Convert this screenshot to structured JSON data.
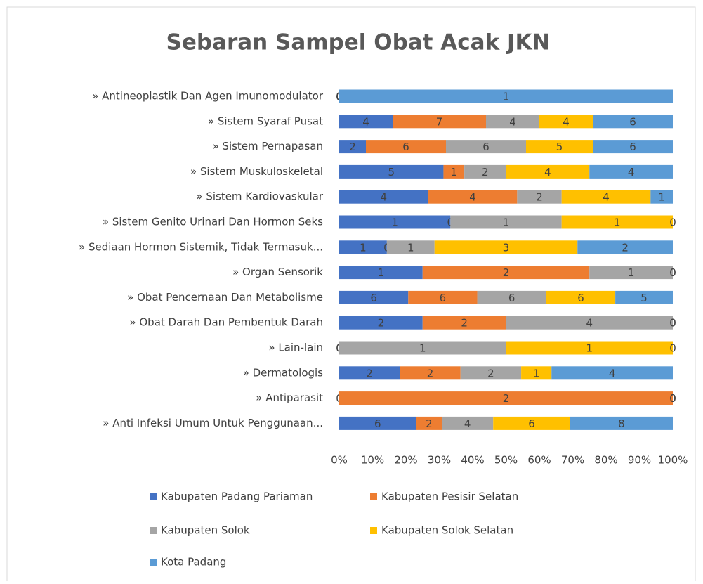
{
  "chart_data": {
    "type": "bar",
    "orientation": "horizontal",
    "stacking": "percent",
    "title": "Sebaran Sampel Obat Acak JKN",
    "categories": [
      "» Antineoplastik Dan Agen Imunomodulator",
      "» Sistem Syaraf Pusat",
      "» Sistem Pernapasan",
      "» Sistem Muskuloskeletal",
      "» Sistem Kardiovaskular",
      "» Sistem Genito Urinari Dan Hormon Seks",
      "» Sediaan Hormon Sistemik, Tidak Termasuk...",
      "» Organ Sensorik",
      "» Obat Pencernaan Dan Metabolisme",
      "» Obat Darah Dan Pembentuk Darah",
      "» Lain-lain",
      "» Dermatologis",
      "» Antiparasit",
      "» Anti Infeksi Umum Untuk Penggunaan..."
    ],
    "series": [
      {
        "name": "Kabupaten Padang Pariaman",
        "color": "#4472c4",
        "values": [
          0,
          4,
          2,
          5,
          4,
          1,
          1,
          1,
          6,
          2,
          0,
          2,
          0,
          6
        ]
      },
      {
        "name": "Kabupaten Pesisir Selatan",
        "color": "#ed7d31",
        "values": [
          0,
          7,
          6,
          1,
          4,
          0,
          0,
          2,
          6,
          2,
          0,
          2,
          2,
          2
        ]
      },
      {
        "name": "Kabupaten Solok",
        "color": "#a5a5a5",
        "values": [
          0,
          4,
          6,
          2,
          2,
          1,
          1,
          1,
          6,
          4,
          1,
          2,
          0,
          4
        ]
      },
      {
        "name": "Kabupaten Solok Selatan",
        "color": "#ffc000",
        "values": [
          0,
          4,
          5,
          4,
          4,
          1,
          3,
          0,
          6,
          0,
          1,
          1,
          0,
          6
        ]
      },
      {
        "name": "Kota Padang",
        "color": "#5b9bd5",
        "values": [
          1,
          6,
          6,
          4,
          1,
          0,
          2,
          0,
          5,
          0,
          0,
          4,
          0,
          8
        ]
      }
    ],
    "xlim": [
      0,
      100
    ],
    "xticks": [
      {
        "value": 0,
        "label": "0%"
      },
      {
        "value": 10,
        "label": "10%"
      },
      {
        "value": 20,
        "label": "20%"
      },
      {
        "value": 30,
        "label": "30%"
      },
      {
        "value": 40,
        "label": "40%"
      },
      {
        "value": 50,
        "label": "50%"
      },
      {
        "value": 60,
        "label": "60%"
      },
      {
        "value": 70,
        "label": "70%"
      },
      {
        "value": 80,
        "label": "80%"
      },
      {
        "value": 90,
        "label": "90%"
      },
      {
        "value": 100,
        "label": "100%"
      }
    ],
    "legend": "bottom"
  }
}
